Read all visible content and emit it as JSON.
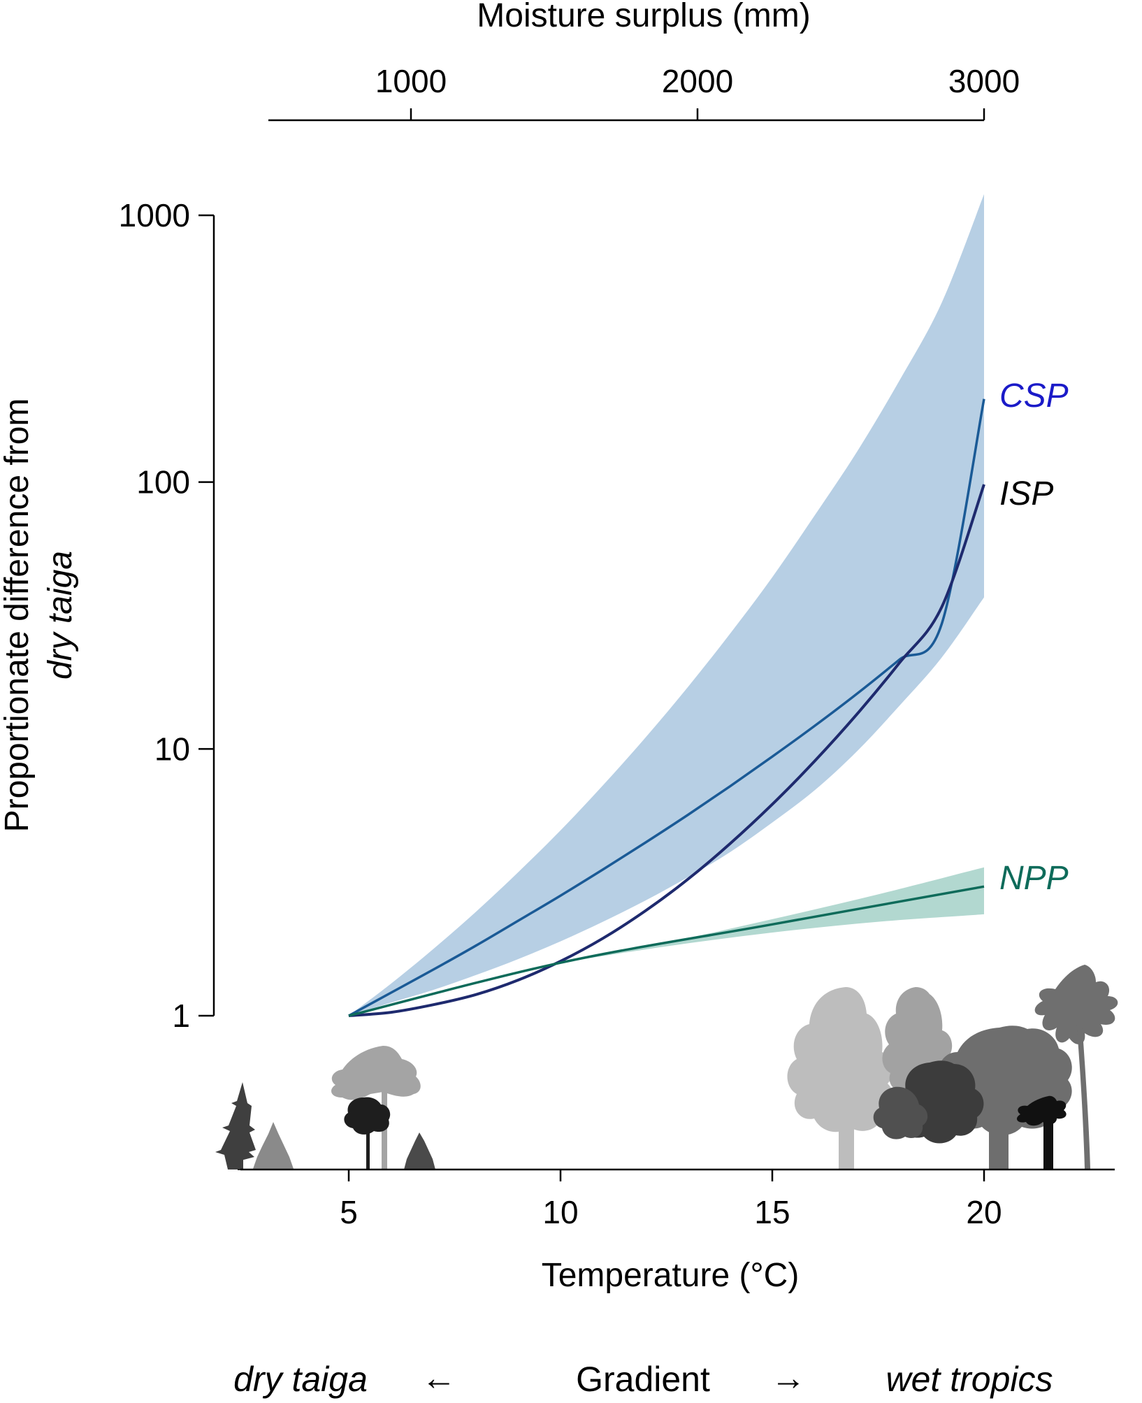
{
  "chart_data": {
    "type": "line",
    "title": "",
    "xlabel": "Temperature (°C)",
    "x2label": "Moisture surplus (mm)",
    "ylabel_line1": "Proportionate difference from",
    "ylabel_line2": "dry taiga",
    "y_scale": "log",
    "xlim": [
      2.5,
      23
    ],
    "ylim_log": [
      0.33,
      1000
    ],
    "x_ticks": [
      5,
      10,
      15,
      20
    ],
    "x_tick_labels": [
      "5",
      "10",
      "15",
      "20"
    ],
    "x2_ticks": [
      1000,
      2000,
      3000
    ],
    "x2_tick_labels": [
      "1000",
      "2000",
      "3000"
    ],
    "x2_range": [
      500,
      3000
    ],
    "y_ticks": [
      1,
      10,
      100,
      1000
    ],
    "y_tick_labels": [
      "1",
      "10",
      "100",
      "1000"
    ],
    "grid": false,
    "legend": "inline labels at line ends",
    "series": [
      {
        "name": "CSP",
        "color": "#1a5a96",
        "label_color": "#1a1ac8",
        "x": [
          5,
          6,
          7,
          8,
          9,
          10,
          11,
          12,
          13,
          14,
          15,
          16,
          17,
          18,
          19,
          20
        ],
        "y": [
          1,
          1.22,
          1.49,
          1.83,
          2.27,
          2.82,
          3.53,
          4.45,
          5.65,
          7.24,
          9.36,
          12.2,
          16.1,
          21.6,
          29.4,
          205
        ]
      },
      {
        "name": "ISP",
        "color": "#1e2a6e",
        "label_color": "#000000",
        "x": [
          5,
          6,
          7,
          8,
          9,
          10,
          11,
          12,
          13,
          14,
          15,
          16,
          17,
          18,
          19,
          20
        ],
        "y": [
          1,
          1.03,
          1.1,
          1.2,
          1.36,
          1.6,
          1.95,
          2.47,
          3.24,
          4.41,
          6.2,
          9.0,
          13.5,
          21.0,
          34.0,
          98
        ]
      },
      {
        "name": "NPP",
        "color": "#0e6b5a",
        "label_color": "#0e6b5a",
        "x": [
          5,
          10,
          15,
          20
        ],
        "y": [
          1,
          1.58,
          2.2,
          3.05
        ]
      }
    ],
    "bands": [
      {
        "series": "CSP/ISP",
        "color": "#b7cfe4",
        "x": [
          5,
          6,
          7,
          8,
          9,
          10,
          11,
          12,
          13,
          14,
          15,
          16,
          17,
          18,
          19,
          20
        ],
        "upper": [
          1,
          1.32,
          1.78,
          2.45,
          3.45,
          4.95,
          7.3,
          11.0,
          17.0,
          27.0,
          44.0,
          75.0,
          130.0,
          240.0,
          470.0,
          1200.0
        ],
        "lower": [
          1,
          1.12,
          1.25,
          1.42,
          1.63,
          1.9,
          2.25,
          2.7,
          3.3,
          4.1,
          5.3,
          7.0,
          9.8,
          14.5,
          22.0,
          37.0
        ]
      },
      {
        "series": "NPP",
        "color": "#b2d8d0",
        "x": [
          10,
          12.5,
          15,
          17.5,
          20
        ],
        "upper": [
          1.58,
          1.88,
          2.3,
          2.85,
          3.6
        ],
        "lower": [
          1.58,
          1.82,
          2.05,
          2.25,
          2.4
        ]
      }
    ]
  },
  "gradient": {
    "left": "dry taiga",
    "left_arrow": "←",
    "middle": "Gradient",
    "right_arrow": "→",
    "right": "wet tropics"
  },
  "silhouettes": {
    "left_icon": "boreal-tree-silhouettes",
    "right_icon": "tropical-tree-silhouettes"
  }
}
